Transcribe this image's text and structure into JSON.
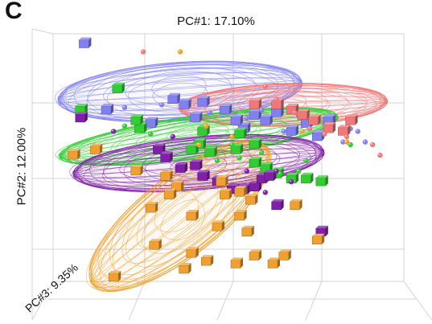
{
  "panel_label": "C",
  "chart_data": {
    "type": "scatter",
    "title": "",
    "xlabel": "PC#1: 17.10%",
    "ylabel": "PC#2: 12.00%",
    "zlabel": "PC#3: 9.35%",
    "grid": true,
    "legend": "none",
    "x_range": [
      0,
      100
    ],
    "y_range": [
      0,
      100
    ],
    "series": [
      {
        "color": "#8080f0",
        "ellipse": {
          "cx": 40,
          "cy": 77,
          "rx": 33,
          "ry": 11,
          "rotation": -4
        },
        "cubes": [
          [
            14,
            95
          ],
          [
            20,
            70
          ],
          [
            32,
            65
          ],
          [
            38,
            74
          ],
          [
            41,
            72
          ],
          [
            46,
            73
          ],
          [
            52,
            70
          ],
          [
            57,
            63
          ],
          [
            60,
            68
          ],
          [
            63,
            66
          ],
          [
            66,
            69
          ],
          [
            70,
            62
          ],
          [
            74,
            65
          ],
          [
            77,
            60
          ],
          [
            80,
            66
          ],
          [
            44,
            67
          ],
          [
            55,
            66
          ]
        ],
        "points": [
          [
            25,
            71
          ],
          [
            35,
            72
          ],
          [
            48,
            69
          ],
          [
            58,
            67
          ],
          [
            62,
            70
          ],
          [
            68,
            62
          ],
          [
            72,
            68
          ],
          [
            76,
            66
          ],
          [
            84,
            58
          ],
          [
            88,
            62
          ],
          [
            90,
            58
          ],
          [
            86,
            63
          ]
        ]
      },
      {
        "color": "#f07878",
        "ellipse": {
          "cx": 68,
          "cy": 72,
          "rx": 28,
          "ry": 8,
          "rotation": -2
        },
        "cubes": [
          [
            60,
            72
          ],
          [
            66,
            72
          ],
          [
            70,
            70
          ],
          [
            73,
            68
          ],
          [
            76,
            66
          ],
          [
            80,
            63
          ],
          [
            84,
            62
          ],
          [
            86,
            66
          ]
        ],
        "points": [
          [
            30,
            92
          ],
          [
            63,
            79
          ],
          [
            66,
            74
          ],
          [
            71,
            69
          ],
          [
            75,
            63
          ],
          [
            79,
            61
          ],
          [
            85,
            60
          ],
          [
            92,
            57
          ],
          [
            94,
            53
          ]
        ]
      },
      {
        "color": "#33cc33",
        "ellipse": {
          "cx": 45,
          "cy": 60,
          "rx": 38,
          "ry": 8,
          "rotation": -8
        },
        "cubes": [
          [
            13,
            70
          ],
          [
            23,
            78
          ],
          [
            29,
            63
          ],
          [
            46,
            62
          ],
          [
            45,
            57
          ],
          [
            43,
            55
          ],
          [
            48,
            54
          ],
          [
            55,
            55
          ],
          [
            60,
            57
          ],
          [
            60,
            50
          ],
          [
            63,
            48
          ],
          [
            66,
            46
          ],
          [
            70,
            44
          ],
          [
            74,
            44
          ],
          [
            78,
            43
          ],
          [
            56,
            61
          ],
          [
            28,
            66
          ]
        ],
        "points": [
          [
            25,
            64
          ],
          [
            32,
            61
          ],
          [
            50,
            51
          ],
          [
            54,
            57
          ],
          [
            56,
            52
          ],
          [
            62,
            54
          ],
          [
            67,
            46
          ],
          [
            72,
            47
          ],
          [
            74,
            51
          ],
          [
            86,
            57
          ]
        ]
      },
      {
        "color": "#8020a8",
        "ellipse": {
          "cx": 45,
          "cy": 50,
          "rx": 34,
          "ry": 10,
          "rotation": -5
        },
        "cubes": [
          [
            13,
            67
          ],
          [
            34,
            55
          ],
          [
            36,
            52
          ],
          [
            40,
            48
          ],
          [
            44,
            49
          ],
          [
            46,
            45
          ],
          [
            50,
            43
          ],
          [
            54,
            40
          ],
          [
            57,
            40
          ],
          [
            60,
            41
          ],
          [
            62,
            44
          ],
          [
            66,
            34
          ],
          [
            78,
            24
          ],
          [
            64,
            45
          ]
        ],
        "points": [
          [
            22,
            62
          ],
          [
            38,
            60
          ],
          [
            58,
            47
          ],
          [
            63,
            39
          ],
          [
            66,
            47
          ],
          [
            70,
            43
          ]
        ]
      },
      {
        "color": "#f0a030",
        "ellipse": {
          "cx": 40,
          "cy": 30,
          "rx": 30,
          "ry": 15,
          "rotation": -38
        },
        "cubes": [
          [
            11,
            53
          ],
          [
            17,
            55
          ],
          [
            28,
            47
          ],
          [
            36,
            45
          ],
          [
            39,
            41
          ],
          [
            51,
            43
          ],
          [
            52,
            38
          ],
          [
            56,
            39
          ],
          [
            59,
            36
          ],
          [
            56,
            30
          ],
          [
            50,
            26
          ],
          [
            47,
            13
          ],
          [
            43,
            16
          ],
          [
            33,
            19
          ],
          [
            41,
            10
          ],
          [
            55,
            12
          ],
          [
            60,
            15
          ],
          [
            65,
            12
          ],
          [
            68,
            15
          ],
          [
            77,
            21
          ],
          [
            32,
            33
          ],
          [
            37,
            38
          ],
          [
            43,
            30
          ],
          [
            58,
            24
          ],
          [
            71,
            34
          ],
          [
            22,
            7
          ]
        ],
        "points": [
          [
            40,
            92
          ],
          [
            47,
            64
          ],
          [
            54,
            60
          ],
          [
            73,
            62
          ],
          [
            85,
            58
          ],
          [
            45,
            57
          ]
        ]
      }
    ]
  }
}
